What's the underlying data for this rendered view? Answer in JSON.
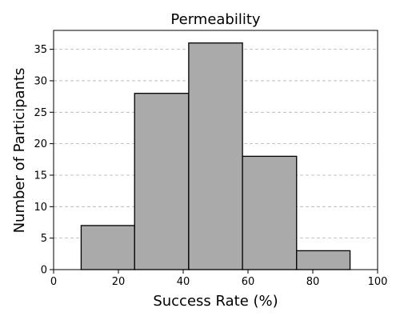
{
  "chart_data": {
    "type": "bar",
    "title": "Permeability",
    "xlabel": "Success Rate (%)",
    "ylabel": "Number of Participants",
    "xlim": [
      0,
      100
    ],
    "ylim": [
      0,
      38
    ],
    "xticks": [
      0,
      20,
      40,
      60,
      80,
      100
    ],
    "yticks": [
      0,
      5,
      10,
      15,
      20,
      25,
      30,
      35
    ],
    "bins": [
      {
        "start": 8.5,
        "end": 25.0,
        "count": 7
      },
      {
        "start": 25.0,
        "end": 41.7,
        "count": 28
      },
      {
        "start": 41.7,
        "end": 58.3,
        "count": 36
      },
      {
        "start": 58.3,
        "end": 75.0,
        "count": 18
      },
      {
        "start": 75.0,
        "end": 91.5,
        "count": 3
      }
    ],
    "bar_color": "#aaaaaa",
    "edge_color": "#000000",
    "grid": "y-dashed",
    "legend": "none"
  }
}
